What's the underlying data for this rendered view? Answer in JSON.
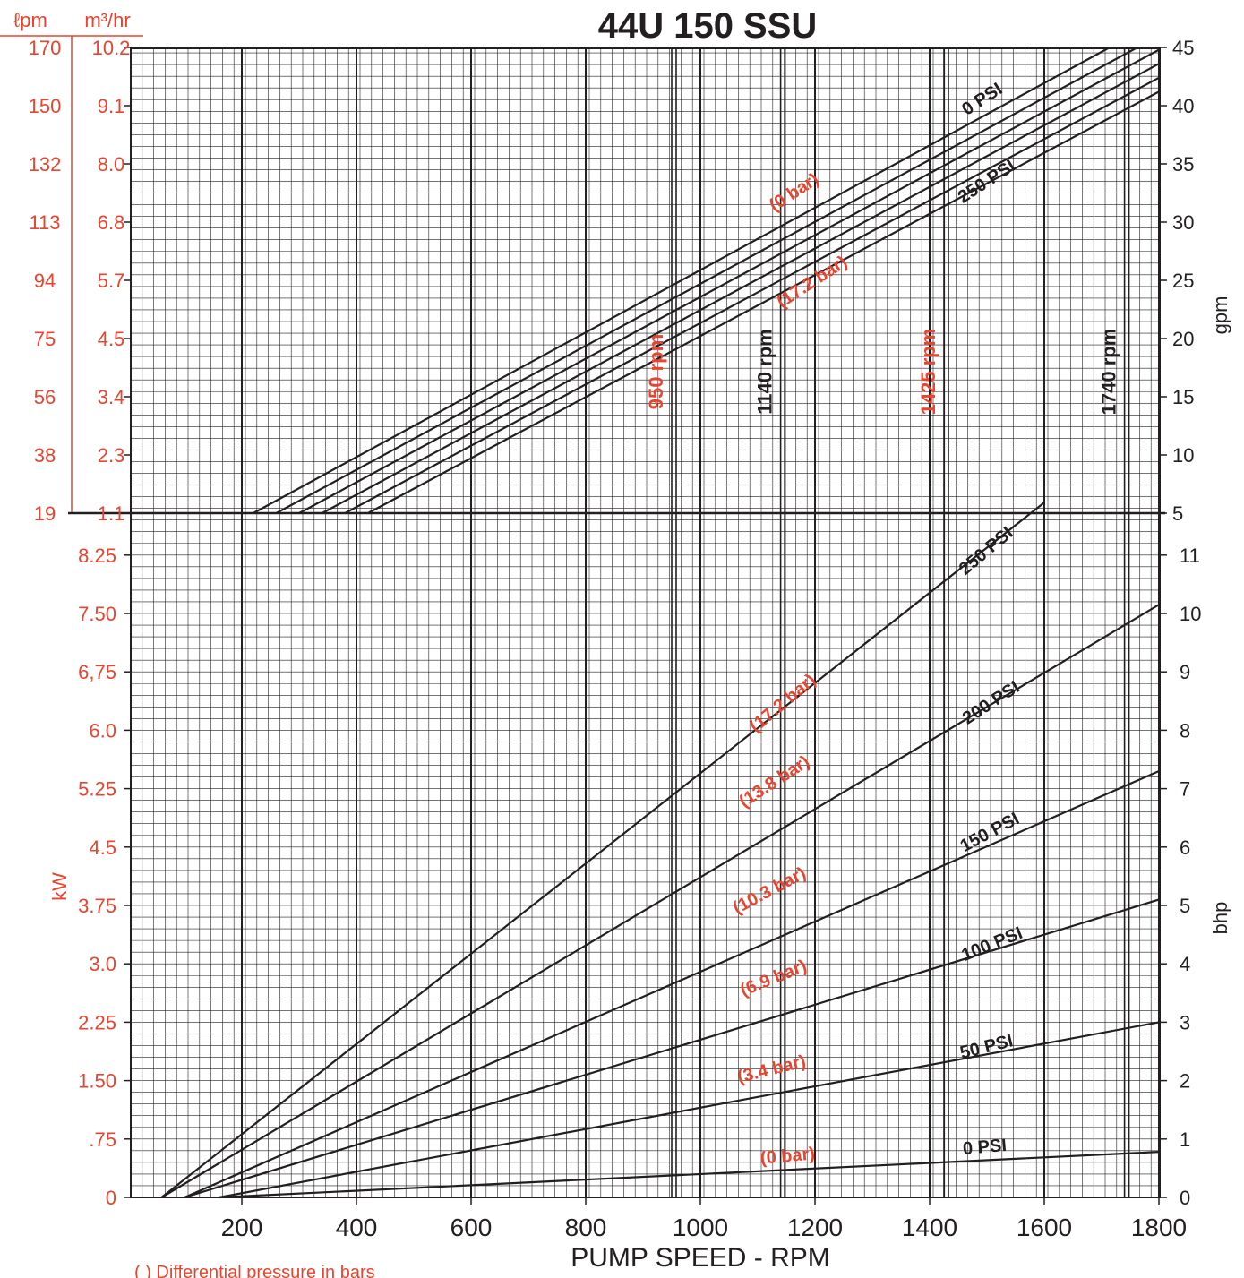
{
  "title": "44U 150 SSU",
  "footnote": "( )  Differential pressure in bars",
  "colors": {
    "ink": "#231f20",
    "accent": "#e8442f",
    "grid": "#231f20"
  },
  "chart_data": {
    "type": "line",
    "xlabel": "PUMP SPEED - RPM",
    "x_ticks": [
      200,
      400,
      600,
      800,
      1000,
      1200,
      1400,
      1600,
      1800
    ],
    "xlim": [
      20,
      1800
    ],
    "speed_markers": [
      {
        "rpm": 950,
        "label": "950 rpm",
        "color": "red"
      },
      {
        "rpm": 1140,
        "label": "1140 rpm",
        "color": "black"
      },
      {
        "rpm": 1425,
        "label": "1425 rpm",
        "color": "red"
      },
      {
        "rpm": 1740,
        "label": "1740 rpm",
        "color": "black"
      }
    ],
    "flow_panel": {
      "ylabel_right": "gpm",
      "ylim": [
        5,
        45
      ],
      "right_ticks": [
        "5",
        "10",
        "15",
        "20",
        "25",
        "30",
        "35",
        "40",
        "45"
      ],
      "left_unit_lpm": "ℓpm",
      "left_unit_m3": "m³/hr",
      "left_ticks_lpm": [
        "19",
        "38",
        "56",
        "75",
        "94",
        "113",
        "132",
        "150",
        "170"
      ],
      "left_ticks_m3": [
        "1.1",
        "2.3",
        "3.4",
        "4.5",
        "5.7",
        "6.8",
        "8.0",
        "9.1",
        "10.2"
      ],
      "series": [
        {
          "x": [
            220,
            1800
          ],
          "y": [
            5,
            47.3
          ]
        },
        {
          "x": [
            260,
            1800
          ],
          "y": [
            5,
            46.0
          ]
        },
        {
          "x": [
            300,
            1800
          ],
          "y": [
            5,
            44.8
          ]
        },
        {
          "x": [
            340,
            1800
          ],
          "y": [
            5,
            43.6
          ]
        },
        {
          "x": [
            380,
            1800
          ],
          "y": [
            5,
            42.4
          ]
        },
        {
          "x": [
            420,
            1800
          ],
          "y": [
            5,
            41.2
          ]
        }
      ],
      "labels": [
        {
          "text": "0 PSI",
          "color": "black"
        },
        {
          "text": "(0 bar)",
          "color": "red"
        },
        {
          "text": "250 PSI",
          "color": "black"
        },
        {
          "text": "(17.2 bar)",
          "color": "red"
        }
      ]
    },
    "power_panel": {
      "ylabel_right": "bhp",
      "ylabel_left": "kW",
      "ylim": [
        0,
        11.5
      ],
      "right_ticks": [
        "0",
        "1",
        "2",
        "3",
        "4",
        "5",
        "6",
        "7",
        "8",
        "9",
        "10",
        "11"
      ],
      "left_ticks": [
        "0",
        ".75",
        "1.50",
        "2.25",
        "3.0",
        "3.75",
        "4.5",
        "5.25",
        "6.0",
        "6,75",
        "7.50",
        "8.25"
      ],
      "series": [
        {
          "name": "0 PSI",
          "x": [
            160,
            1800
          ],
          "y": [
            0,
            0.78
          ]
        },
        {
          "name": "50 PSI",
          "x": [
            160,
            1800
          ],
          "y": [
            0,
            3.0
          ]
        },
        {
          "name": "100 PSI",
          "x": [
            100,
            1800
          ],
          "y": [
            0,
            5.1
          ]
        },
        {
          "name": "150 PSI",
          "x": [
            100,
            1800
          ],
          "y": [
            0,
            7.3
          ]
        },
        {
          "name": "200 PSI",
          "x": [
            60,
            1800
          ],
          "y": [
            0,
            10.15
          ]
        },
        {
          "name": "250 PSI",
          "x": [
            60,
            1600
          ],
          "y": [
            0,
            11.9
          ]
        }
      ],
      "labels": [
        {
          "text": "0 PSI",
          "color": "black"
        },
        {
          "text": "(0 bar)",
          "color": "red"
        },
        {
          "text": "50 PSI",
          "color": "black"
        },
        {
          "text": "(3.4 bar)",
          "color": "red"
        },
        {
          "text": "100 PSI",
          "color": "black"
        },
        {
          "text": "(6.9 bar)",
          "color": "red"
        },
        {
          "text": "150 PSI",
          "color": "black"
        },
        {
          "text": "(10.3 bar)",
          "color": "red"
        },
        {
          "text": "200 PSI",
          "color": "black"
        },
        {
          "text": "(13.8 bar)",
          "color": "red"
        },
        {
          "text": "250 PSI",
          "color": "black"
        },
        {
          "text": "(17.2 bar)",
          "color": "red"
        }
      ]
    }
  }
}
